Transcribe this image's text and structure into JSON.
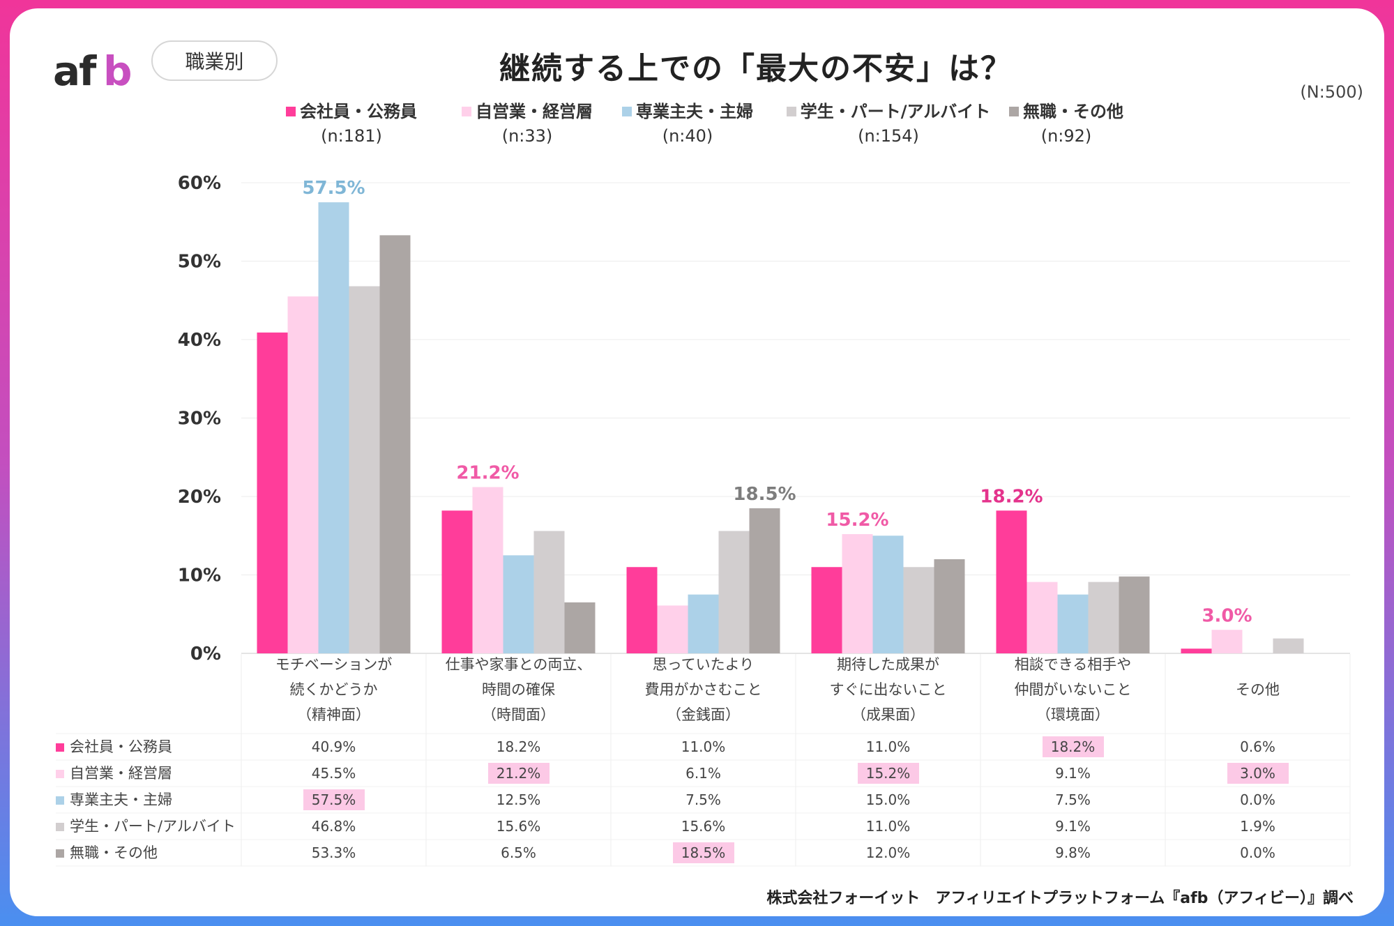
{
  "header": {
    "logo_text": "afb",
    "category_tag": "職業別",
    "title": "継続する上での「最大の不安」は？",
    "total_n": "(N:500)"
  },
  "colors": {
    "series": [
      "#ff3d9a",
      "#ffd0ea",
      "#acd1e8",
      "#d2cecf",
      "#aca6a4"
    ],
    "highlight_cell": "#fcc9e6",
    "label_pink": "#f05aa6",
    "label_magenta": "#e4338c",
    "label_blue": "#7fb6d6",
    "label_gray": "#7d7d7d"
  },
  "legend": [
    {
      "name": "会社員・公務員",
      "n": "(n:181)"
    },
    {
      "name": "自営業・経営層",
      "n": "(n:33)"
    },
    {
      "name": "専業主夫・主婦",
      "n": "(n:40)"
    },
    {
      "name": "学生・パート/アルバイト",
      "n": "(n:154)"
    },
    {
      "name": "無職・その他",
      "n": "(n:92)"
    }
  ],
  "categories": [
    {
      "lines": [
        "モチベーションが",
        "続くかどうか",
        "（精神面）"
      ]
    },
    {
      "lines": [
        "仕事や家事との両立、",
        "時間の確保",
        "（時間面）"
      ]
    },
    {
      "lines": [
        "思っていたより",
        "費用がかさむこと",
        "（金銭面）"
      ]
    },
    {
      "lines": [
        "期待した成果が",
        "すぐに出ないこと",
        "（成果面）"
      ]
    },
    {
      "lines": [
        "相談できる相手や",
        "仲間がいないこと",
        "（環境面）"
      ]
    },
    {
      "lines": [
        "その他"
      ]
    }
  ],
  "chart_data": {
    "type": "bar",
    "title": "継続する上での「最大の不安」は？",
    "categories": [
      "モチベーションが続くかどうか（精神面）",
      "仕事や家事との両立、時間の確保（時間面）",
      "思っていたより費用がかさむこと（金銭面）",
      "期待した成果がすぐに出ないこと（成果面）",
      "相談できる相手や仲間がいないこと（環境面）",
      "その他"
    ],
    "series": [
      {
        "name": "会社員・公務員",
        "values": [
          40.9,
          18.2,
          11.0,
          11.0,
          18.2,
          0.6
        ]
      },
      {
        "name": "自営業・経営層",
        "values": [
          45.5,
          21.2,
          6.1,
          15.2,
          9.1,
          3.0
        ]
      },
      {
        "name": "専業主夫・主婦",
        "values": [
          57.5,
          12.5,
          7.5,
          15.0,
          7.5,
          0.0
        ]
      },
      {
        "name": "学生・パート/アルバイト",
        "values": [
          46.8,
          15.6,
          15.6,
          11.0,
          9.1,
          1.9
        ]
      },
      {
        "name": "無職・その他",
        "values": [
          53.3,
          6.5,
          18.5,
          12.0,
          9.8,
          0.0
        ]
      }
    ],
    "ylim": [
      0,
      60
    ],
    "yticks": [
      "0%",
      "10%",
      "20%",
      "30%",
      "40%",
      "50%",
      "60%"
    ],
    "grid": true,
    "legend_position": "top",
    "max_labels": [
      {
        "category": 0,
        "series": 2,
        "text": "57.5%",
        "color": "#7fb6d6"
      },
      {
        "category": 1,
        "series": 1,
        "text": "21.2%",
        "color": "#f05aa6"
      },
      {
        "category": 2,
        "series": 4,
        "text": "18.5%",
        "color": "#7d7d7d"
      },
      {
        "category": 3,
        "series": 1,
        "text": "15.2%",
        "color": "#f05aa6"
      },
      {
        "category": 4,
        "series": 0,
        "text": "18.2%",
        "color": "#e4338c"
      },
      {
        "category": 5,
        "series": 1,
        "text": "3.0%",
        "color": "#f05aa6"
      }
    ]
  },
  "table": {
    "rows": [
      {
        "label": "会社員・公務員",
        "cells": [
          "40.9%",
          "18.2%",
          "11.0%",
          "11.0%",
          "18.2%",
          "0.6%"
        ],
        "highlight": [
          4
        ]
      },
      {
        "label": "自営業・経営層",
        "cells": [
          "45.5%",
          "21.2%",
          "6.1%",
          "15.2%",
          "9.1%",
          "3.0%"
        ],
        "highlight": [
          1,
          3,
          5
        ]
      },
      {
        "label": "専業主夫・主婦",
        "cells": [
          "57.5%",
          "12.5%",
          "7.5%",
          "15.0%",
          "7.5%",
          "0.0%"
        ],
        "highlight": [
          0
        ]
      },
      {
        "label": "学生・パート/アルバイト",
        "cells": [
          "46.8%",
          "15.6%",
          "15.6%",
          "11.0%",
          "9.1%",
          "1.9%"
        ],
        "highlight": []
      },
      {
        "label": "無職・その他",
        "cells": [
          "53.3%",
          "6.5%",
          "18.5%",
          "12.0%",
          "9.8%",
          "0.0%"
        ],
        "highlight": [
          2
        ]
      }
    ]
  },
  "footer": {
    "source": "株式会社フォーイット　アフィリエイトプラットフォーム『afb（アフィビー）』調べ"
  }
}
